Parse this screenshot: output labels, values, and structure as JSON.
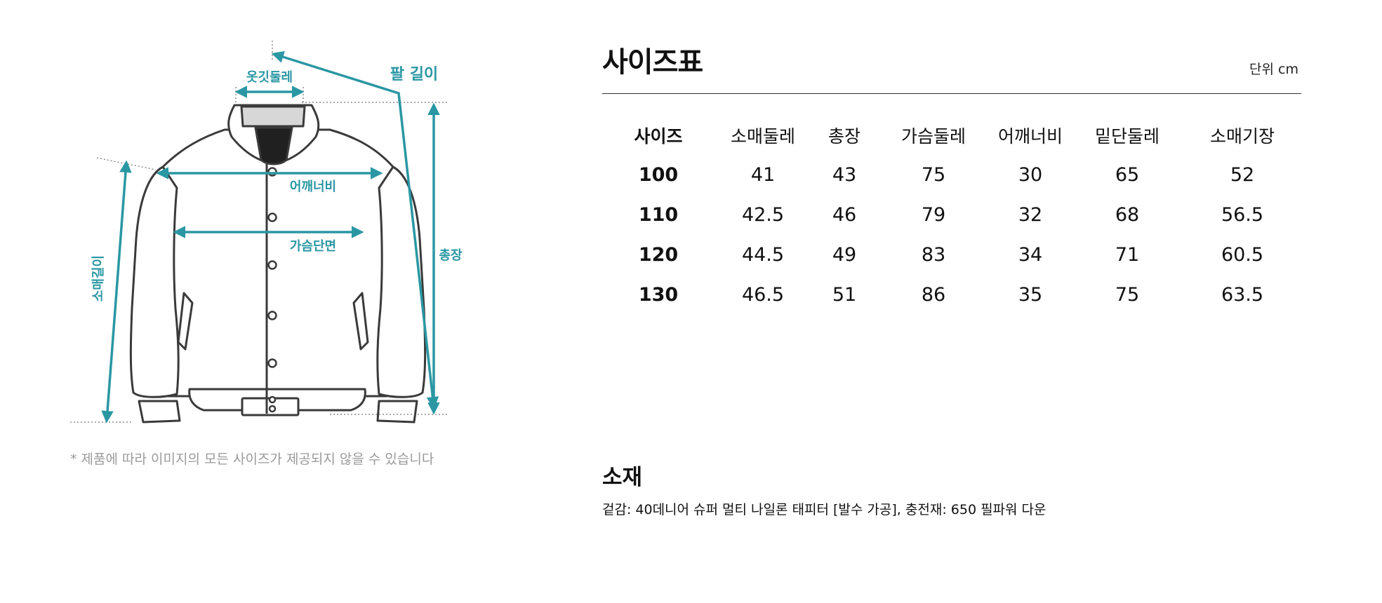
{
  "diagram": {
    "labels": {
      "collar": "옷깃둘레",
      "arm_length": "팔 길이",
      "shoulder": "어깨너비",
      "chest": "가슴단면",
      "total_length": "총장",
      "sleeve_length": "소매길이"
    },
    "accent_color": "#2a97a3",
    "note": "* 제품에 따라 이미지의 모든 사이즈가 제공되지 않을 수 있습니다"
  },
  "size_table": {
    "title": "사이즈표",
    "unit": "단위 cm",
    "headers": [
      "사이즈",
      "소매둘레",
      "총장",
      "가슴둘레",
      "어깨너비",
      "밑단둘레",
      "소매기장"
    ],
    "rows": [
      [
        "100",
        "41",
        "43",
        "75",
        "30",
        "65",
        "52"
      ],
      [
        "110",
        "42.5",
        "46",
        "79",
        "32",
        "68",
        "56.5"
      ],
      [
        "120",
        "44.5",
        "49",
        "83",
        "34",
        "71",
        "60.5"
      ],
      [
        "130",
        "46.5",
        "51",
        "86",
        "35",
        "75",
        "63.5"
      ]
    ]
  },
  "material": {
    "title": "소재",
    "text": "겉감: 40데니어 슈퍼 멀티 나일론 태피터 [발수 가공], 충전재: 650 필파워 다운"
  }
}
